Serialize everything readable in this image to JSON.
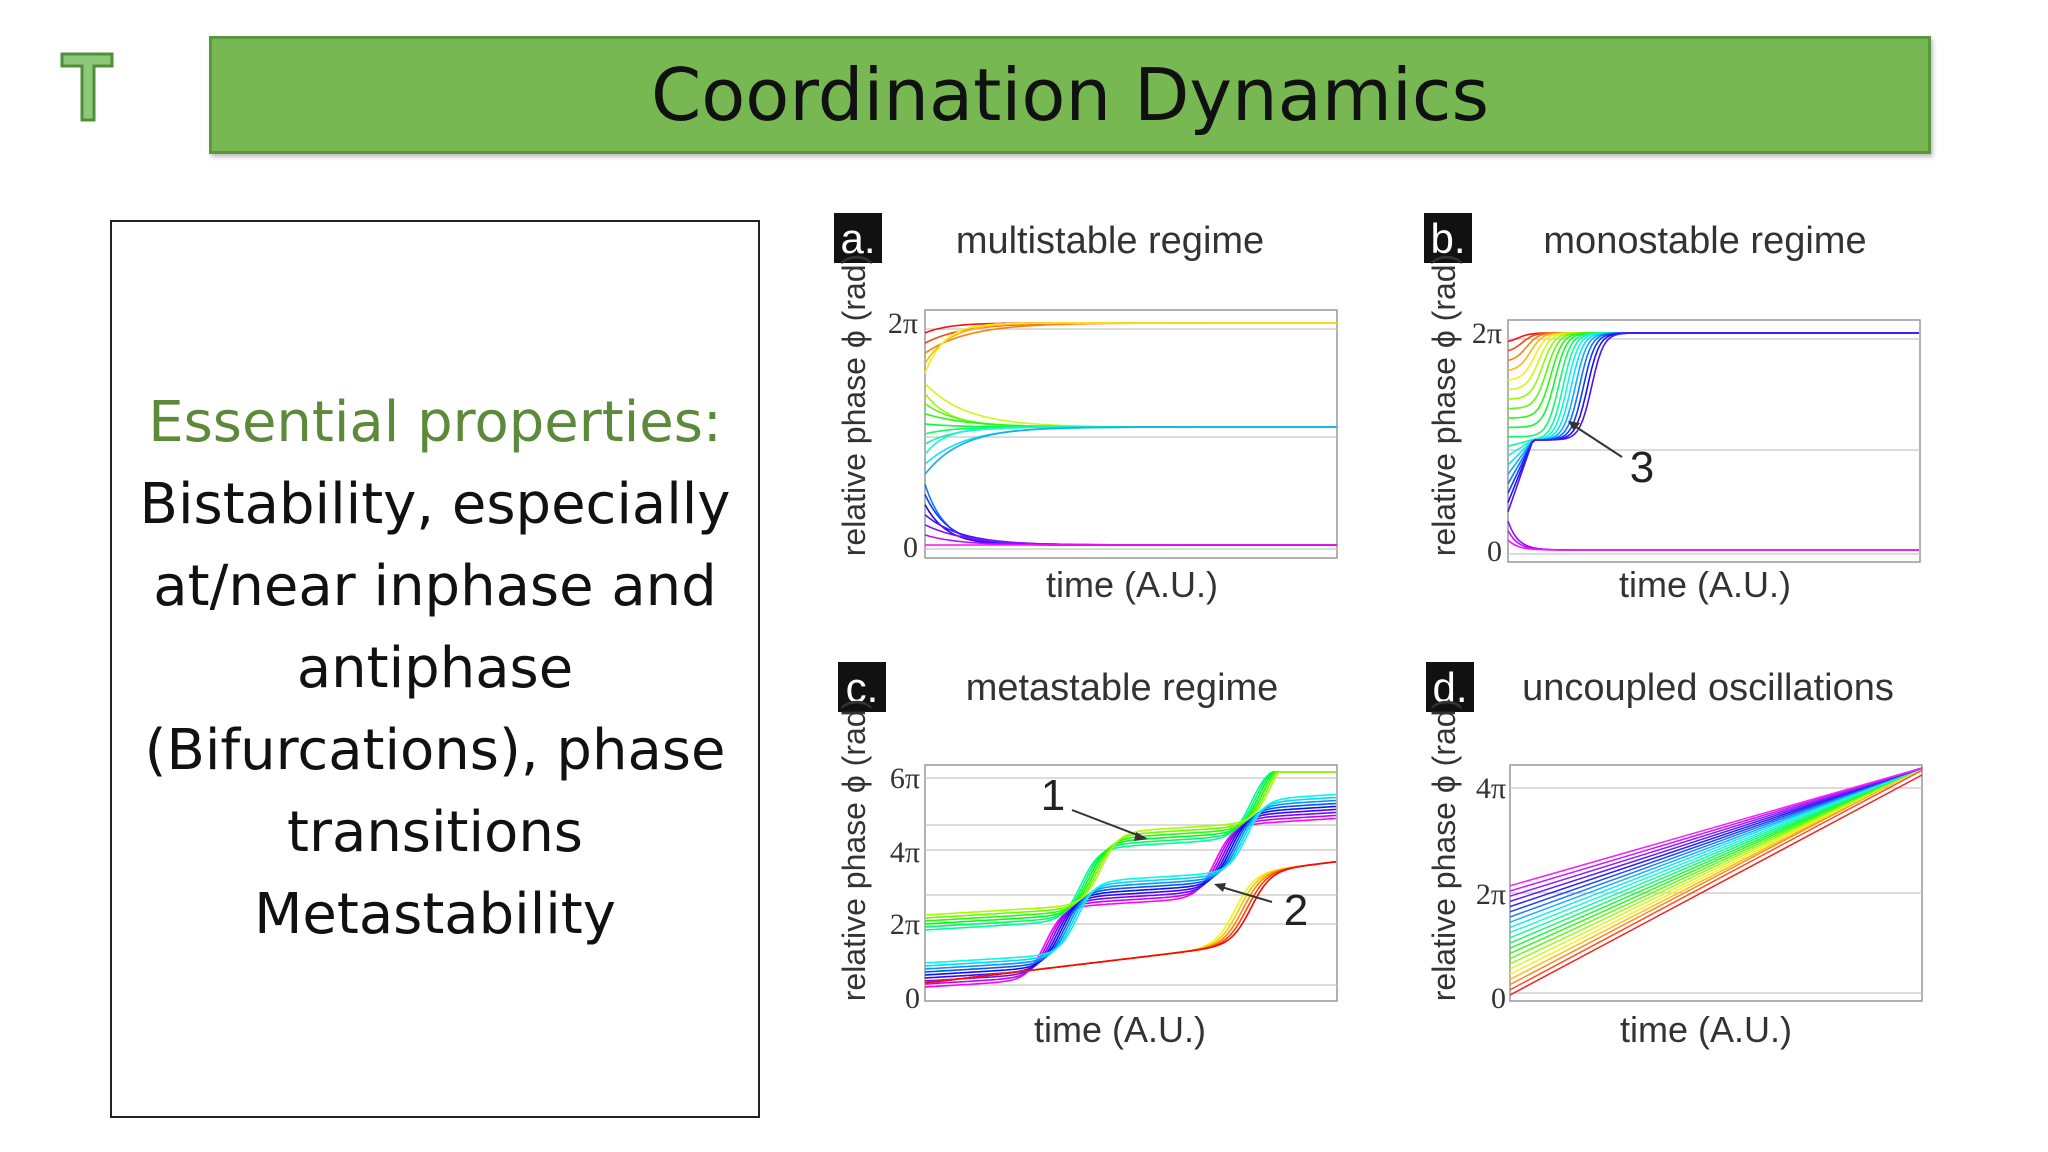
{
  "title": "Coordination Dynamics",
  "logo_letter": "T",
  "properties": {
    "heading": "Essential properties:",
    "lines": [
      "Bistability, especially",
      "at/near inphase and",
      "antiphase",
      "(Bifurcations), phase",
      "transitions",
      "Metastability"
    ]
  },
  "colors": {
    "title_bar": "#77b852",
    "heading": "#5c8a3a"
  },
  "panels": [
    {
      "letter": "a.",
      "title": "multistable regime",
      "ylabel": "relative phase ϕ (rad)",
      "xlabel": "time (A.U.)",
      "ticks": [
        "2π",
        "0"
      ],
      "annotation": ""
    },
    {
      "letter": "b.",
      "title": "monostable regime",
      "ylabel": "relative phase ϕ (rad)",
      "xlabel": "time (A.U.)",
      "ticks": [
        "2π",
        "0"
      ],
      "annotation": "3"
    },
    {
      "letter": "c.",
      "title": "metastable regime",
      "ylabel": "relative phase ϕ (rad)",
      "xlabel": "time (A.U.)",
      "ticks": [
        "6π",
        "4π",
        "2π",
        "0"
      ],
      "annotations": [
        "1",
        "2"
      ]
    },
    {
      "letter": "d.",
      "title": "uncoupled oscillations",
      "ylabel": "relative phase ϕ (rad)",
      "xlabel": "time (A.U.)",
      "ticks": [
        "4π",
        "2π",
        "0"
      ],
      "annotation": ""
    }
  ]
}
